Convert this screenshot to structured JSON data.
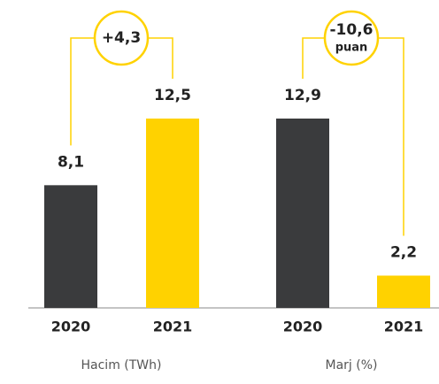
{
  "chart_data": [
    {
      "type": "bar",
      "xlabel": "Hacim (TWh)",
      "categories": [
        "2020",
        "2021"
      ],
      "values": [
        8.1,
        12.5
      ],
      "value_labels": [
        "8,1",
        "12,5"
      ],
      "colors": [
        "#3a3b3d",
        "#ffd200"
      ],
      "annotation": [
        "+4,3"
      ]
    },
    {
      "type": "bar",
      "xlabel": "Marj (%)",
      "categories": [
        "2020",
        "2021"
      ],
      "values": [
        12.9,
        2.2
      ],
      "value_labels": [
        "12,9",
        "2,2"
      ],
      "colors": [
        "#3a3b3d",
        "#ffd200"
      ],
      "annotation": [
        "-10,6",
        "puan"
      ]
    }
  ]
}
